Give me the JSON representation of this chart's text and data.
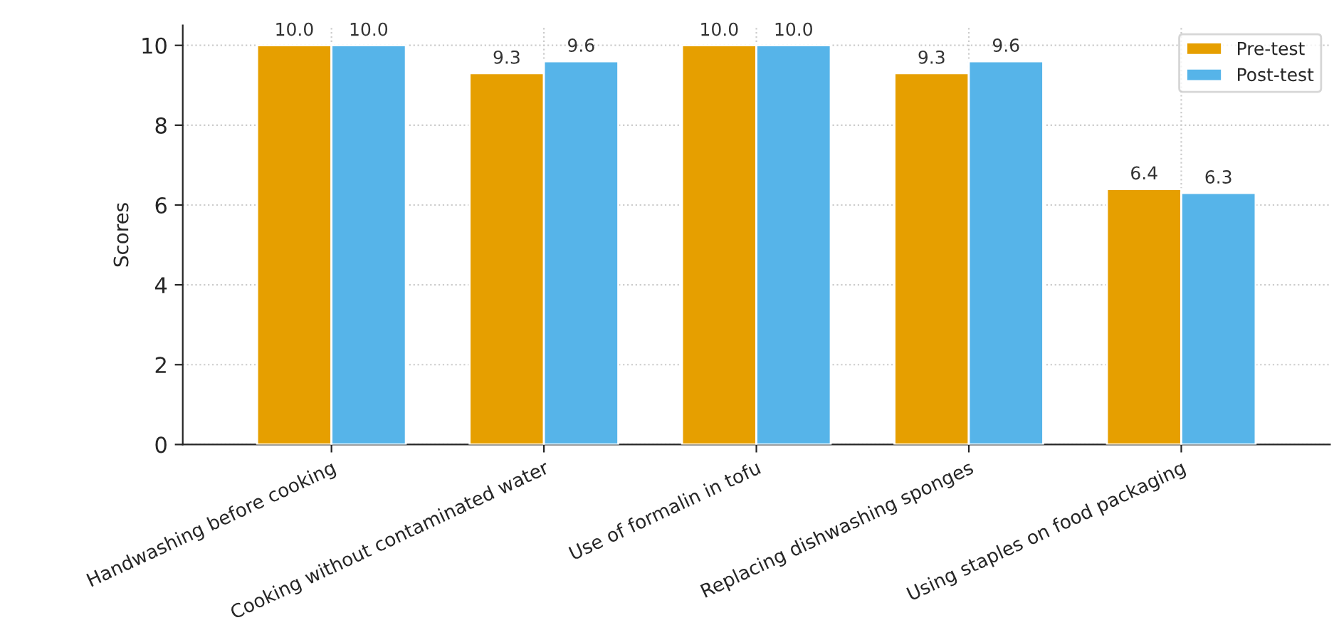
{
  "chart_data": {
    "type": "bar",
    "ylabel": "Scores",
    "categories": [
      "Handwashing before cooking",
      "Cooking without contaminated water",
      "Use of formalin in tofu",
      "Replacing dishwashing sponges",
      "Using staples on food packaging"
    ],
    "series": [
      {
        "name": "Pre-test",
        "color": "#e69f00",
        "values": [
          10.0,
          9.3,
          10.0,
          9.3,
          6.4
        ],
        "value_labels": [
          "10.0",
          "9.3",
          "10.0",
          "9.3",
          "6.4"
        ]
      },
      {
        "name": "Post-test",
        "color": "#56b4e9",
        "values": [
          10.0,
          9.6,
          10.0,
          9.6,
          6.3
        ],
        "value_labels": [
          "10.0",
          "9.6",
          "10.0",
          "9.6",
          "6.3"
        ]
      }
    ],
    "ylim": [
      0,
      10.5
    ],
    "yticks": [
      0,
      2,
      4,
      6,
      8,
      10
    ],
    "grid": true,
    "legend": "top right"
  }
}
